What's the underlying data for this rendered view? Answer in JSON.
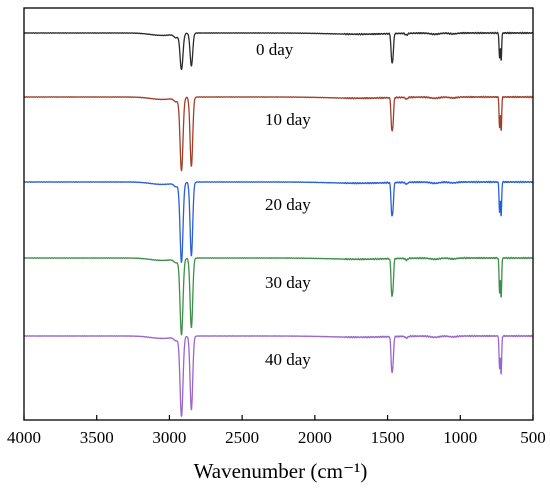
{
  "chart_data": {
    "type": "line",
    "xlabel": "Wavenumber (cm⁻¹)",
    "ylabel": "",
    "xlim": [
      4000,
      500
    ],
    "x_reversed": true,
    "x_ticks": [
      4000,
      3500,
      3000,
      2500,
      2000,
      1500,
      1000,
      500
    ],
    "y_ticks_shown": false,
    "grid": false,
    "legend": "none",
    "series": [
      {
        "name": "0 day",
        "color": "#2b2b2b",
        "baseline": 0.0,
        "peak_2917": 0.6,
        "peak_2849": 0.55,
        "peak_1472": 0.39,
        "peak_1463": 0.33,
        "peak_730": 0.41,
        "peak_719": 0.46
      },
      {
        "name": "10 day",
        "color": "#a0402a",
        "baseline": 0.0,
        "peak_2917": 1.22,
        "peak_2849": 1.16,
        "peak_1472": 0.45,
        "peak_1463": 0.38,
        "peak_730": 0.5,
        "peak_719": 0.57
      },
      {
        "name": "20 day",
        "color": "#2a5fd6",
        "baseline": 0.0,
        "peak_2917": 1.33,
        "peak_2849": 1.23,
        "peak_1472": 0.45,
        "peak_1463": 0.38,
        "peak_730": 0.5,
        "peak_719": 0.58
      },
      {
        "name": "30 day",
        "color": "#3d8f4a",
        "baseline": 0.0,
        "peak_2917": 1.27,
        "peak_2849": 1.16,
        "peak_1472": 0.5,
        "peak_1463": 0.43,
        "peak_730": 0.57,
        "peak_719": 0.67
      },
      {
        "name": "40 day",
        "color": "#9a66cc",
        "baseline": 0.0,
        "peak_2917": 1.33,
        "peak_2849": 1.23,
        "peak_1472": 0.48,
        "peak_1463": 0.4,
        "peak_730": 0.55,
        "peak_719": 0.65
      }
    ]
  }
}
